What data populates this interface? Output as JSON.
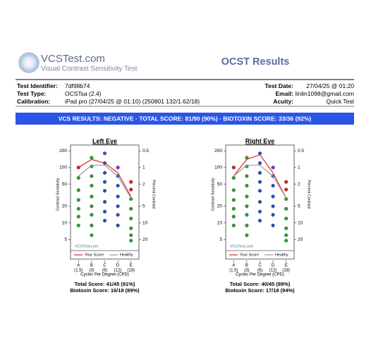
{
  "header": {
    "logo_title": "VCSTest.com",
    "logo_subtitle": "Visual Contrast Sensitivity Test",
    "report_title": "OCST Results"
  },
  "info": {
    "left": [
      [
        "Test Identifier:",
        "7df98b74"
      ],
      [
        "Test Type:",
        "OCSTsa (2.4)"
      ],
      [
        "Calibration:",
        "iPad pro (27/04/25 @ 01:10) (250801 132/1.62/18)"
      ]
    ],
    "right": [
      [
        "Test Date:",
        "27/04/25 @ 01:20"
      ],
      [
        "Email:",
        "linlin1098@gmail.com"
      ],
      [
        "Acuity:",
        "Quick Test"
      ]
    ]
  },
  "banner": "VCS RESULTS: NEGATIVE · TOTAL SCORE: 81/90 (90%) · BIOTOXIN SCORE: 33/36 (92%)",
  "chart_data": [
    {
      "type": "line",
      "title": "Left Eye",
      "categories": [
        "A",
        "B",
        "C",
        "D",
        "E"
      ],
      "category_sublabels": [
        "(1.5)",
        "(3)",
        "(6)",
        "(12)",
        "(18)"
      ],
      "xlabel": "Cycles Per Degree (CPD)",
      "ylabel": "Contrast Sensitivity",
      "y2label": "Percent Contrast",
      "log_scale": true,
      "ylim": [
        4.5,
        240
      ],
      "yticks": [
        200,
        100,
        50,
        20,
        10,
        5
      ],
      "y2lim": [
        0.417,
        22.2
      ],
      "y2ticks": [
        0.5,
        1,
        2,
        5,
        10,
        20
      ],
      "watermark": "VCSTest.com",
      "series": [
        {
          "name": "Your Score",
          "color": "#d42a2a",
          "values": [
            100,
            140,
            120,
            80,
            30
          ]
        },
        {
          "name": "Healthy",
          "color": "#999999",
          "values": [
            70,
            110,
            110,
            70,
            28
          ]
        }
      ],
      "dots": [
        {
          "color": "#2e9e2e",
          "missed_color": "#d62020",
          "missed": 1,
          "levels": [
            100,
            65,
            39,
            26,
            18,
            13,
            9
          ]
        },
        {
          "color": "#2e9e2e",
          "missed_color": "#d62020",
          "missed": 0,
          "levels": [
            150,
            105,
            70,
            47,
            30,
            20,
            14,
            9,
            6
          ]
        },
        {
          "color": "#1f4fc4",
          "missed_color": "#8a2ec4",
          "missed": 1,
          "levels": [
            180,
            120,
            80,
            55,
            38,
            24,
            16,
            11
          ]
        },
        {
          "color": "#1f4fc4",
          "missed_color": "#8a2ec4",
          "missed": 1,
          "levels": [
            100,
            70,
            47,
            30,
            20,
            14,
            9
          ]
        },
        {
          "color": "#2e9e2e",
          "missed_color": "#d62020",
          "missed": 2,
          "levels": [
            55,
            40,
            27,
            18,
            12,
            8,
            6,
            4.8
          ]
        }
      ],
      "total_score": "Total Score: 41/45 (91%)",
      "biotoxin_score": "Biotoxin Score: 16/18 (89%)"
    },
    {
      "type": "line",
      "title": "Right Eye",
      "categories": [
        "A",
        "B",
        "C",
        "D",
        "E"
      ],
      "category_sublabels": [
        "(1.5)",
        "(3)",
        "(6)",
        "(12)",
        "(18)"
      ],
      "xlabel": "Cycles Per Degree (CPD)",
      "ylabel": "Contrast Sensitivity",
      "y2label": "Percent Contrast",
      "log_scale": true,
      "ylim": [
        4.5,
        240
      ],
      "yticks": [
        200,
        100,
        50,
        20,
        10,
        5
      ],
      "y2lim": [
        0.417,
        22.2
      ],
      "y2ticks": [
        0.5,
        1,
        2,
        5,
        10,
        20
      ],
      "watermark": "VCSTest.com",
      "series": [
        {
          "name": "Your Score",
          "color": "#d42a2a",
          "values": [
            70,
            140,
            170,
            80,
            28
          ]
        },
        {
          "name": "Healthy",
          "color": "#999999",
          "values": [
            70,
            110,
            110,
            70,
            28
          ]
        }
      ],
      "dots": [
        {
          "color": "#2e9e2e",
          "missed_color": "#d62020",
          "missed": 1,
          "levels": [
            100,
            65,
            39,
            26,
            18,
            13,
            9
          ]
        },
        {
          "color": "#2e9e2e",
          "missed_color": "#d62020",
          "missed": 0,
          "levels": [
            150,
            105,
            70,
            47,
            30,
            20,
            14,
            9,
            6
          ]
        },
        {
          "color": "#1f4fc4",
          "missed_color": "#8a2ec4",
          "missed": 0,
          "levels": [
            180,
            120,
            80,
            55,
            38,
            24,
            16,
            11
          ]
        },
        {
          "color": "#1f4fc4",
          "missed_color": "#8a2ec4",
          "missed": 1,
          "levels": [
            100,
            70,
            47,
            30,
            20,
            14,
            9
          ]
        },
        {
          "color": "#2e9e2e",
          "missed_color": "#d62020",
          "missed": 2,
          "levels": [
            55,
            40,
            27,
            18,
            12,
            8,
            6,
            4.8
          ]
        }
      ],
      "total_score": "Total Score: 40/45 (89%)",
      "biotoxin_score": "Biotoxin Score: 17/18 (94%)"
    }
  ]
}
